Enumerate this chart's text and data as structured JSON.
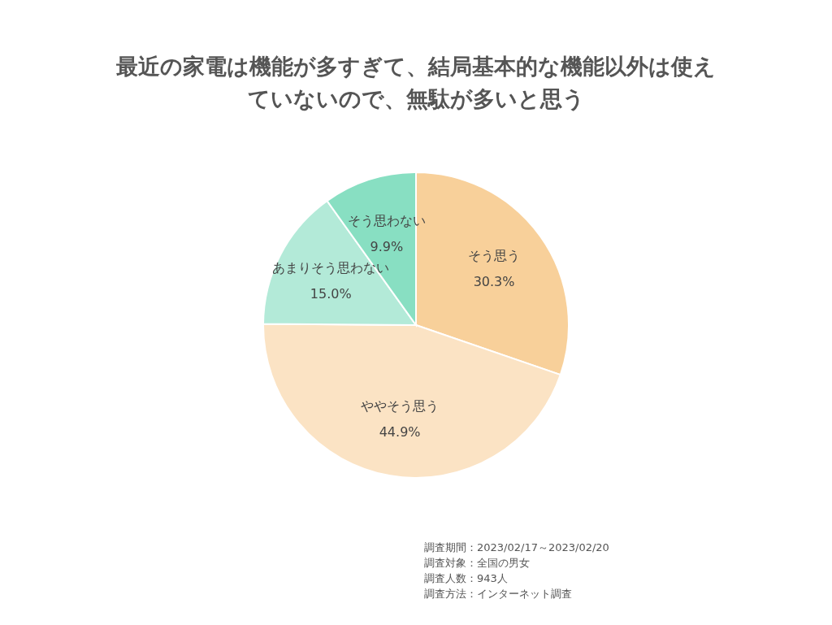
{
  "chart_data": {
    "type": "pie",
    "title": "最近の家電は機能が多すぎて、結局基本的な機能以外は使えていないので、無駄が多いと思う",
    "categories": [
      "そう思う",
      "ややそう思う",
      "あまりそう思わない",
      "そう思わない"
    ],
    "values": [
      30.3,
      44.9,
      15.0,
      9.9
    ],
    "colors": [
      "#f8d09a",
      "#fbe3c4",
      "#b3ead8",
      "#88dfc2"
    ],
    "value_labels": [
      "30.3%",
      "44.9%",
      "15.0%",
      "9.9%"
    ],
    "annotations": [
      "調査期間：2023/02/17～2023/02/20",
      "調査対象：全国の男女",
      "調査人数：943人",
      "調査方法：インターネット調査"
    ]
  }
}
